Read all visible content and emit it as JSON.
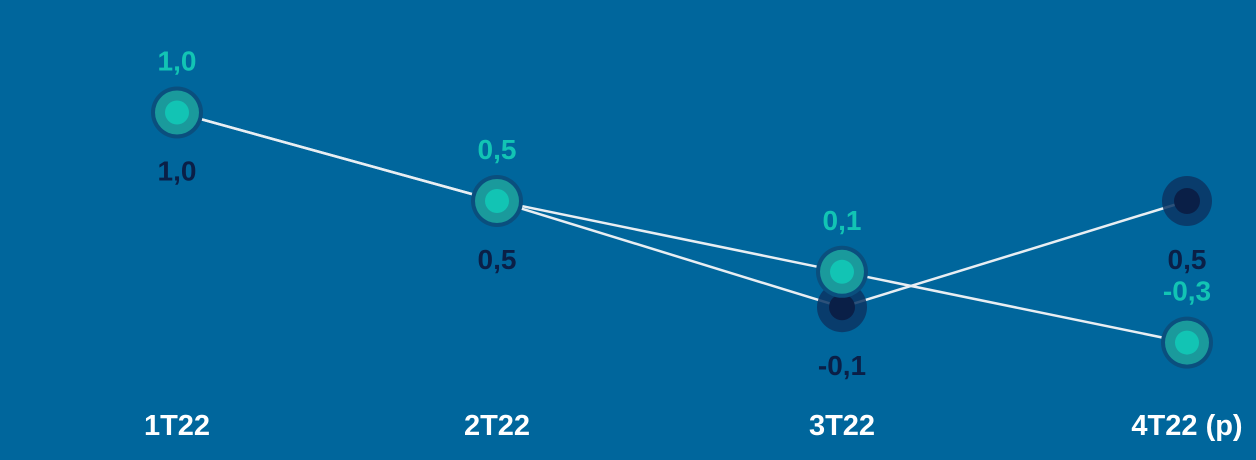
{
  "chart_data": {
    "type": "line",
    "title": "",
    "xlabel": "",
    "ylabel": "",
    "categories": [
      "1T22",
      "2T22",
      "3T22",
      "4T22 (p)"
    ],
    "ylim": [
      -0.5,
      1.2
    ],
    "grid": false,
    "legend": "none",
    "series": [
      {
        "values": [
          1.0,
          0.5,
          0.1,
          -0.3
        ],
        "labels": [
          "1,0",
          "0,5",
          "0,1",
          "-0,3"
        ],
        "color": "#12c4b4",
        "label_color": "#12c4b4",
        "label_position": "above"
      },
      {
        "values": [
          1.0,
          0.5,
          -0.1,
          0.5
        ],
        "labels": [
          "1,0",
          "0,5",
          "-0,1",
          "0,5"
        ],
        "color": "#0a1f47",
        "label_color": "#0a1f47",
        "label_position": "below"
      }
    ],
    "colors": {
      "background": "#00669c",
      "line": "#e8eef3",
      "tick_label": "#ffffff"
    }
  }
}
